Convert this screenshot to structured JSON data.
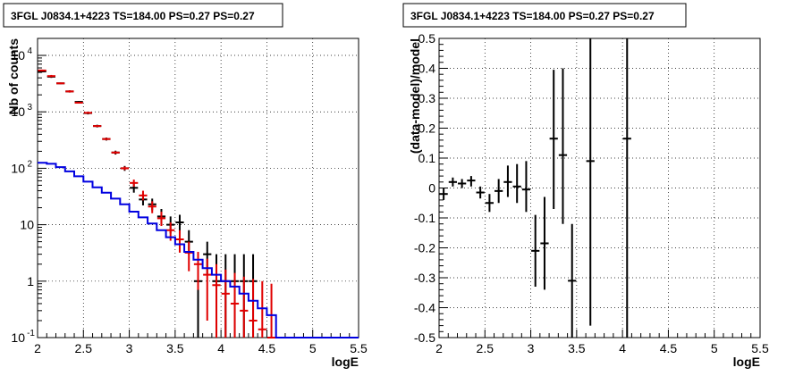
{
  "chart_data": [
    {
      "type": "scatter",
      "title": "3FGL J0834.1+4223 TS=184.00 PS=0.27 PS=0.27",
      "xlabel": "logE",
      "ylabel": "Nb of counts",
      "xlim": [
        2,
        5.5
      ],
      "ylim": [
        0.1,
        20000
      ],
      "yscale": "log",
      "grid": true,
      "x_ticks": [
        "2",
        "2.5",
        "3",
        "3.5",
        "4",
        "4.5",
        "5",
        "5.5"
      ],
      "y_ticks": [
        {
          "value": 0.1,
          "label": "10",
          "exp": "-1"
        },
        {
          "value": 1,
          "label": "1",
          "exp": ""
        },
        {
          "value": 10,
          "label": "10",
          "exp": ""
        },
        {
          "value": 100,
          "label": "10",
          "exp": "2"
        },
        {
          "value": 1000,
          "label": "10",
          "exp": "3"
        },
        {
          "value": 10000,
          "label": "10",
          "exp": "4"
        }
      ],
      "series": [
        {
          "color": "#000000",
          "style": "points",
          "x": [
            2.05,
            2.15,
            2.25,
            2.35,
            2.45,
            2.55,
            2.65,
            2.75,
            2.85,
            2.95,
            3.05,
            3.15,
            3.25,
            3.35,
            3.45,
            3.55,
            3.65,
            3.75,
            3.85,
            3.95,
            4.05,
            4.15,
            4.25,
            4.35
          ],
          "y": [
            5200,
            4200,
            3200,
            2300,
            1500,
            950,
            560,
            330,
            190,
            100,
            45,
            28,
            23,
            14,
            10,
            11,
            5,
            1,
            3,
            1,
            1,
            1,
            1,
            1
          ],
          "ylo": [
            5000,
            4000,
            3100,
            2200,
            1450,
            900,
            530,
            310,
            175,
            90,
            37,
            22,
            18,
            10,
            7,
            7,
            3,
            0.1,
            1.3,
            0.1,
            0.1,
            0.1,
            0.1,
            0.1
          ],
          "yhi": [
            5400,
            4400,
            3300,
            2400,
            1550,
            1000,
            590,
            350,
            205,
            110,
            55,
            35,
            29,
            19,
            14,
            15,
            8,
            3,
            5,
            3,
            3,
            3,
            3,
            3
          ]
        },
        {
          "color": "#e00000",
          "style": "points",
          "x": [
            2.05,
            2.15,
            2.25,
            2.35,
            2.45,
            2.55,
            2.65,
            2.75,
            2.85,
            2.95,
            3.05,
            3.15,
            3.25,
            3.35,
            3.45,
            3.55,
            3.65,
            3.75,
            3.85,
            3.95,
            4.05,
            4.15,
            4.25,
            4.35,
            4.45,
            4.55
          ],
          "y": [
            5400,
            4300,
            3200,
            2300,
            1450,
            960,
            560,
            330,
            190,
            100,
            55,
            33,
            21,
            13,
            8,
            5.5,
            3.2,
            2,
            1.3,
            0.85,
            0.6,
            0.4,
            0.3,
            0.2,
            0.14,
            0.1
          ],
          "ylo": [
            5200,
            4100,
            3100,
            2200,
            1400,
            920,
            540,
            315,
            180,
            93,
            47,
            27,
            16,
            9.5,
            5.2,
            3.2,
            1.5,
            0.7,
            0.2,
            0.1,
            0.1,
            0.1,
            0.1,
            0.1,
            0.1,
            0.1
          ],
          "yhi": [
            5600,
            4500,
            3300,
            2400,
            1500,
            1000,
            580,
            345,
            200,
            107,
            63,
            40,
            26,
            17,
            11,
            8,
            5,
            3.3,
            2.5,
            2,
            1.6,
            1.4,
            1.2,
            1.1,
            1,
            0.9
          ]
        },
        {
          "color": "#0000e0",
          "style": "step",
          "x": [
            2,
            2.1,
            2.2,
            2.3,
            2.4,
            2.5,
            2.6,
            2.7,
            2.8,
            2.9,
            3,
            3.1,
            3.2,
            3.3,
            3.4,
            3.5,
            3.6,
            3.7,
            3.8,
            3.9,
            4,
            4.1,
            4.2,
            4.3,
            4.4,
            4.5,
            4.6,
            4.7,
            4.8,
            4.9,
            5,
            5.1,
            5.2,
            5.3,
            5.4
          ],
          "y": [
            125,
            120,
            105,
            88,
            72,
            58,
            46,
            37,
            29,
            23,
            17,
            13.5,
            10.5,
            8,
            6,
            4.5,
            3.3,
            2.4,
            1.7,
            1.3,
            1,
            0.8,
            0.6,
            0.45,
            0.33,
            0.25,
            0.1,
            0.1,
            0.1,
            0.1,
            0.1,
            0.1,
            0.1,
            0.1,
            0.1
          ]
        }
      ]
    },
    {
      "type": "scatter",
      "title": "3FGL J0834.1+4223 TS=184.00 PS=0.27 PS=0.27",
      "xlabel": "logE",
      "ylabel": "(data-model)/model",
      "xlim": [
        2,
        5.5
      ],
      "ylim": [
        -0.5,
        0.5
      ],
      "grid": true,
      "x_ticks": [
        "2",
        "2.5",
        "3",
        "3.5",
        "4",
        "4.5",
        "5",
        "5.5"
      ],
      "y_ticks": [
        "-0.5",
        "-0.4",
        "-0.3",
        "-0.2",
        "-0.1",
        "0",
        "0.1",
        "0.2",
        "0.3",
        "0.4",
        "0.5"
      ],
      "series": [
        {
          "color": "#000000",
          "style": "points",
          "x": [
            2.05,
            2.15,
            2.25,
            2.35,
            2.45,
            2.55,
            2.65,
            2.75,
            2.85,
            2.95,
            3.05,
            3.15,
            3.25,
            3.35,
            3.45,
            3.65,
            4.05
          ],
          "y": [
            -0.02,
            0.02,
            0.015,
            0.025,
            -0.015,
            -0.05,
            -0.01,
            0.02,
            0.005,
            -0.005,
            -0.21,
            -0.185,
            0.165,
            0.11,
            -0.31,
            0.09,
            0.165
          ],
          "ylo": [
            -0.04,
            0.005,
            0.0,
            0.005,
            -0.035,
            -0.08,
            -0.05,
            -0.03,
            -0.05,
            -0.08,
            -0.33,
            -0.34,
            -0.07,
            -0.12,
            -0.5,
            -0.46,
            -0.5
          ],
          "yhi": [
            0.0,
            0.035,
            0.03,
            0.04,
            0.005,
            -0.02,
            0.03,
            0.075,
            0.08,
            0.09,
            -0.09,
            -0.03,
            0.395,
            0.4,
            -0.12,
            0.5,
            0.5
          ]
        }
      ]
    }
  ]
}
